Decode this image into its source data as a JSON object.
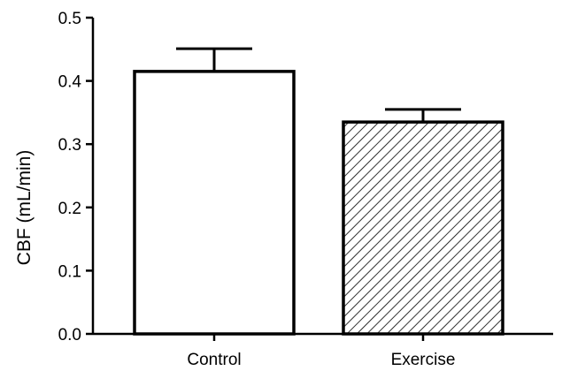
{
  "chart_data": {
    "type": "bar",
    "title": "",
    "xlabel": "",
    "ylabel": "CBF (mL/min)",
    "ylim": [
      0,
      0.5
    ],
    "yticks": [
      "0.0",
      "0.1",
      "0.2",
      "0.3",
      "0.4",
      "0.5"
    ],
    "categories": [
      "Control",
      "Exercise"
    ],
    "values": [
      0.415,
      0.335
    ],
    "errors": [
      0.036,
      0.02
    ],
    "fills": [
      "solid-white",
      "diagonal-hatch"
    ],
    "grid": false,
    "legend": "none"
  }
}
